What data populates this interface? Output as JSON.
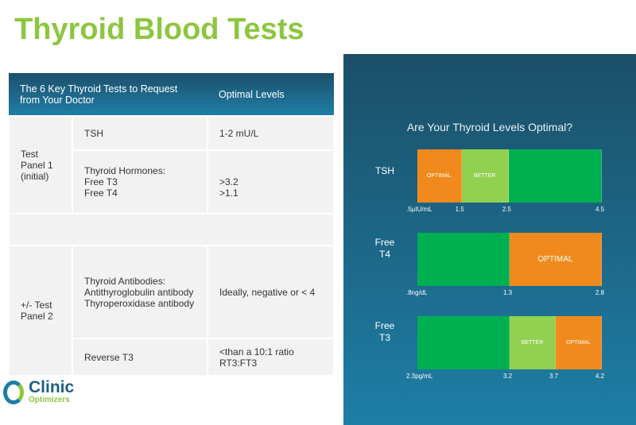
{
  "title": "Thyroid Blood Tests",
  "table": {
    "headers": [
      "The 6 Key Thyroid Tests to Request from Your Doctor",
      "Optimal Levels"
    ],
    "panel1": "Test Panel 1 (initial)",
    "panel2": "+/- Test Panel 2",
    "rows": [
      {
        "test": "TSH",
        "level": "1-2 mU/L"
      },
      {
        "test_lines": [
          "Thyroid Hormones:",
          "Free T3",
          "Free T4"
        ],
        "level_lines": [
          ">3.2",
          ">1.1"
        ]
      },
      {
        "test_lines": [
          "Thyroid Antibodies:",
          "Antithyroglobulin antibody",
          "Thyroperoxidase antibody"
        ],
        "level": "Ideally, negative or < 4"
      },
      {
        "test": "Reverse T3",
        "level": "<than a 10:1 ratio RT3:FT3"
      }
    ]
  },
  "logo": {
    "line1": "Clinic",
    "line2": "Optimizers"
  },
  "panel": {
    "title": "Are Your Thyroid Levels Optimal?",
    "colors": {
      "green": "#00b050",
      "light_green": "#92d050",
      "orange": "#f08a1c"
    },
    "bars": [
      {
        "label": "TSH",
        "ticks": [
          ".5μIU/mL",
          "1.5",
          "2.5",
          "4.5"
        ],
        "segments": [
          {
            "label": "OPTIMAL",
            "color": "orange",
            "frac": 0.24
          },
          {
            "label": "BETTER",
            "color": "light_green",
            "frac": 0.255
          },
          {
            "label": "",
            "color": "green",
            "frac": 0.505
          }
        ]
      },
      {
        "label": "Free T4",
        "ticks": [
          ".8ng/dL",
          "1.3",
          "2.8"
        ],
        "segments": [
          {
            "label": "",
            "color": "green",
            "frac": 0.5
          },
          {
            "label": "OPTIMAL",
            "color": "orange",
            "frac": 0.5
          }
        ]
      },
      {
        "label": "Free T3",
        "ticks": [
          "2.3pg/mL",
          "3.2",
          "3.7",
          "4.2"
        ],
        "segments": [
          {
            "label": "",
            "color": "green",
            "frac": 0.5
          },
          {
            "label": "BETTER",
            "color": "light_green",
            "frac": 0.25
          },
          {
            "label": "OPTIMAL",
            "color": "orange",
            "frac": 0.25
          }
        ]
      }
    ]
  }
}
